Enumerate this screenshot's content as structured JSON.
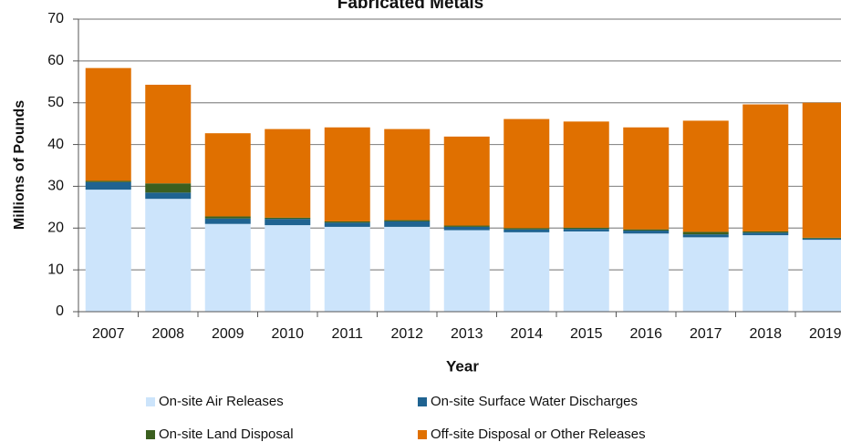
{
  "chart_data": {
    "type": "stacked_bar",
    "title": "Fabricated Metals",
    "x_label": "Year",
    "y_label": "Millions of Pounds",
    "categories": [
      "2007",
      "2008",
      "2009",
      "2010",
      "2011",
      "2012",
      "2013",
      "2014",
      "2015",
      "2016",
      "2017",
      "2018",
      "2019"
    ],
    "series": [
      {
        "name": "On-site Air Releases",
        "color": "#cce4fb",
        "values": [
          29.2,
          27,
          21,
          20.7,
          20.3,
          20.3,
          19.5,
          19,
          19.2,
          18.7,
          17.8,
          18.3,
          17.2
        ]
      },
      {
        "name": "On-site Surface Water Discharges",
        "color": "#1f6391",
        "values": [
          1.8,
          1.5,
          1.3,
          1.5,
          1.0,
          1.3,
          0.8,
          0.7,
          0.6,
          0.7,
          0.7,
          0.6,
          0.3
        ]
      },
      {
        "name": "On-site Land Disposal",
        "color": "#3b5f1f",
        "values": [
          0.3,
          2.2,
          0.5,
          0.3,
          0.3,
          0.3,
          0.3,
          0.3,
          0.3,
          0.3,
          0.6,
          0.3,
          0.2
        ]
      },
      {
        "name": "Off-site Disposal or Other Releases",
        "color": "#e07000",
        "values": [
          27,
          23.6,
          19.9,
          21.2,
          22.5,
          21.8,
          21.3,
          26.1,
          25.4,
          24.4,
          26.6,
          30.4,
          32.3
        ]
      }
    ],
    "ylim": [
      0,
      70
    ],
    "yticks": [
      0,
      10,
      20,
      30,
      40,
      50,
      60,
      70
    ],
    "grid": true
  }
}
